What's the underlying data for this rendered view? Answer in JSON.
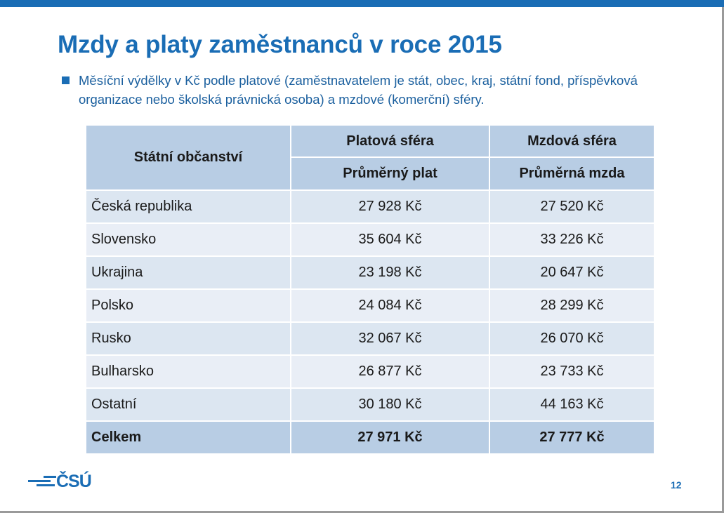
{
  "slide": {
    "title": "Mzdy a platy zaměstnanců v roce 2015",
    "subtitle_line1": "Měsíční výdělky v Kč podle platové (zaměstnavatelem je stát, obec, kraj, státní fond, příspěvková",
    "subtitle_line2": "organizace nebo školská právnická osoba) a mzdové (komerční) sféry.",
    "page_number": "12",
    "logo_text": "ČSÚ"
  },
  "table": {
    "col_country": "Státní občanství",
    "col_group_public": "Platová sféra",
    "col_group_private": "Mzdová sféra",
    "col_public_avg": "Průměrný plat",
    "col_private_avg": "Průměrná mzda",
    "rows": [
      {
        "country": "Česká republika",
        "public": "27 928 Kč",
        "private": "27 520 Kč"
      },
      {
        "country": "Slovensko",
        "public": "35 604 Kč",
        "private": "33 226 Kč"
      },
      {
        "country": "Ukrajina",
        "public": "23 198 Kč",
        "private": "20 647 Kč"
      },
      {
        "country": "Polsko",
        "public": "24 084 Kč",
        "private": "28 299 Kč"
      },
      {
        "country": "Rusko",
        "public": "32 067 Kč",
        "private": "26 070 Kč"
      },
      {
        "country": "Bulharsko",
        "public": "26 877 Kč",
        "private": "23 733 Kč"
      },
      {
        "country": "Ostatní",
        "public": "30 180 Kč",
        "private": "44 163 Kč"
      }
    ],
    "total": {
      "country": "Celkem",
      "public": "27 971 Kč",
      "private": "27 777 Kč"
    }
  },
  "colors": {
    "accent": "#1a6db5",
    "header_fill": "#b8cde4",
    "row_fill": "#dce6f1",
    "row_fill_alt": "#e9eef6"
  }
}
